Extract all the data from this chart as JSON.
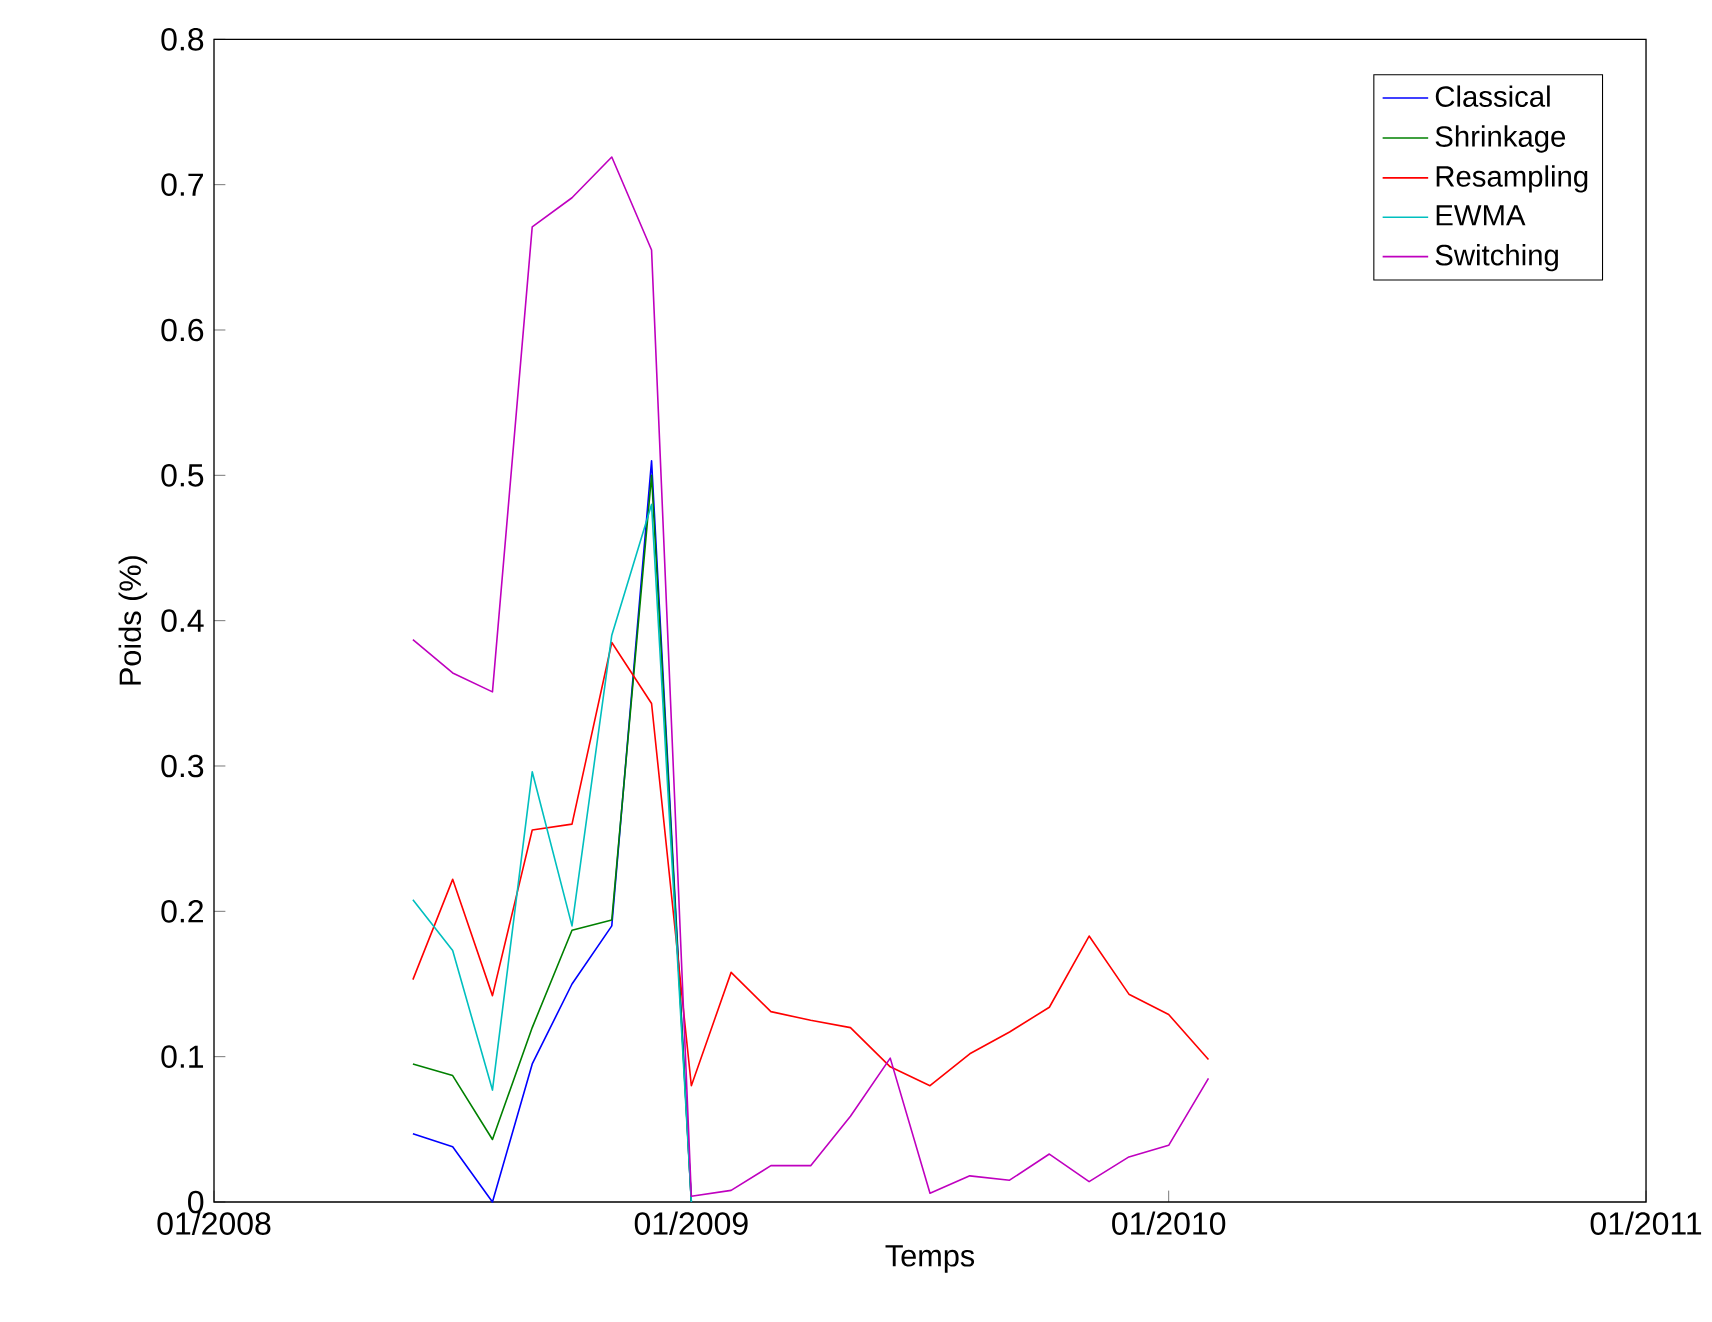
{
  "chart_data": {
    "type": "line",
    "xlabel": "Temps",
    "ylabel": "Poids (%)",
    "xlim": [
      "2008-01",
      "2011-01"
    ],
    "ylim": [
      0,
      0.8
    ],
    "xticks": [
      {
        "value": "2008-01",
        "label": "01/2008"
      },
      {
        "value": "2009-01",
        "label": "01/2009"
      },
      {
        "value": "2010-01",
        "label": "01/2010"
      },
      {
        "value": "2011-01",
        "label": "01/2011"
      }
    ],
    "yticks": [
      0,
      0.1,
      0.2,
      0.3,
      0.4,
      0.5,
      0.6,
      0.7,
      0.8
    ],
    "legend": "top right",
    "grid": false,
    "marker": "none",
    "line_style": "solid",
    "series": [
      {
        "name": "Classical",
        "color": "#0000ff",
        "x": [
          "2008-06",
          "2008-07",
          "2008-08",
          "2008-09",
          "2008-10",
          "2008-11",
          "2008-12",
          "2009-01"
        ],
        "values": [
          0.047,
          0.038,
          0,
          0.095,
          0.15,
          0.19,
          0.51,
          0
        ]
      },
      {
        "name": "Shrinkage",
        "color": "#008000",
        "x": [
          "2008-06",
          "2008-07",
          "2008-08",
          "2008-09",
          "2008-10",
          "2008-11",
          "2008-12",
          "2009-01"
        ],
        "values": [
          0.095,
          0.087,
          0.043,
          0.12,
          0.187,
          0.194,
          0.5,
          0
        ]
      },
      {
        "name": "Resampling",
        "color": "#ff0000",
        "x": [
          "2008-06",
          "2008-07",
          "2008-08",
          "2008-09",
          "2008-10",
          "2008-11",
          "2008-12",
          "2009-01",
          "2009-02",
          "2009-03",
          "2009-04",
          "2009-05",
          "2009-06",
          "2009-07",
          "2009-08",
          "2009-09",
          "2009-10",
          "2009-11",
          "2009-12",
          "2010-01",
          "2010-02"
        ],
        "values": [
          0.153,
          0.222,
          0.142,
          0.256,
          0.26,
          0.385,
          0.343,
          0.08,
          0.158,
          0.131,
          0.125,
          0.12,
          0.093,
          0.08,
          0.102,
          0.117,
          0.134,
          0.183,
          0.143,
          0.129,
          0.098
        ]
      },
      {
        "name": "EWMA",
        "color": "#00bfbf",
        "x": [
          "2008-06",
          "2008-07",
          "2008-08",
          "2008-09",
          "2008-10",
          "2008-11",
          "2008-12",
          "2009-01"
        ],
        "values": [
          0.208,
          0.173,
          0.077,
          0.296,
          0.19,
          0.39,
          0.48,
          0
        ]
      },
      {
        "name": "Switching",
        "color": "#bf00bf",
        "x": [
          "2008-06",
          "2008-07",
          "2008-08",
          "2008-09",
          "2008-10",
          "2008-11",
          "2008-12",
          "2009-01",
          "2009-02",
          "2009-03",
          "2009-04",
          "2009-05",
          "2009-06",
          "2009-07",
          "2009-08",
          "2009-09",
          "2009-10",
          "2009-11",
          "2009-12",
          "2010-01",
          "2010-02"
        ],
        "values": [
          0.387,
          0.364,
          0.351,
          0.671,
          0.691,
          0.719,
          0.655,
          0.004,
          0.008,
          0.025,
          0.025,
          0.059,
          0.099,
          0.006,
          0.018,
          0.015,
          0.033,
          0.014,
          0.031,
          0.039,
          0.085
        ]
      }
    ]
  }
}
